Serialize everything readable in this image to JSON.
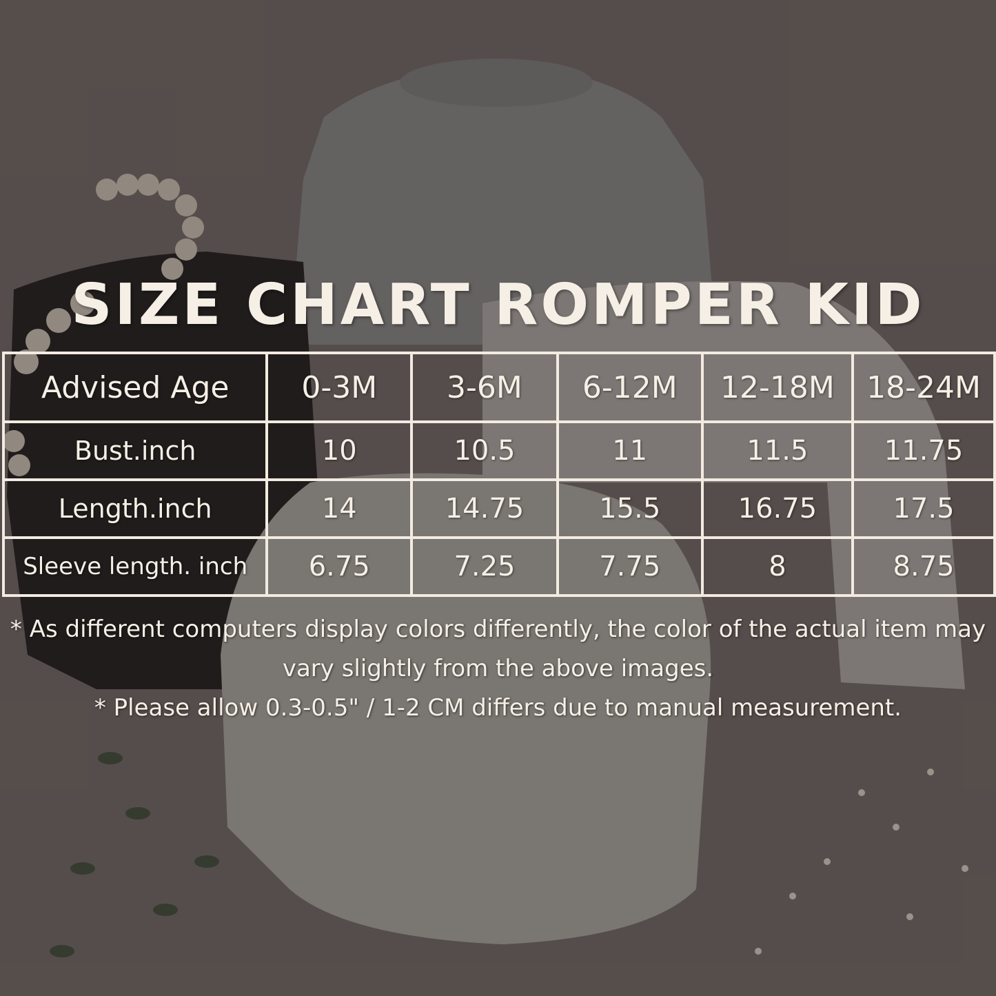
{
  "title": "SIZE CHART ROMPER KID",
  "table": {
    "header": [
      "Advised Age",
      "0-3M",
      "3-6M",
      "6-12M",
      "12-18M",
      "18-24M"
    ],
    "rows": [
      [
        "Bust.inch",
        "10",
        "10.5",
        "11",
        "11.5",
        "11.75"
      ],
      [
        "Length.inch",
        "14",
        "14.75",
        "15.5",
        "16.75",
        "17.5"
      ],
      [
        "Sleeve length. inch",
        "6.75",
        "7.25",
        "7.75",
        "8",
        "8.75"
      ]
    ]
  },
  "notes": [
    "* As different computers display colors differently, the color of the actual item may vary slightly from the above images.",
    "* Please allow 0.3-0.5\" / 1-2 CM differs due to manual measurement."
  ]
}
